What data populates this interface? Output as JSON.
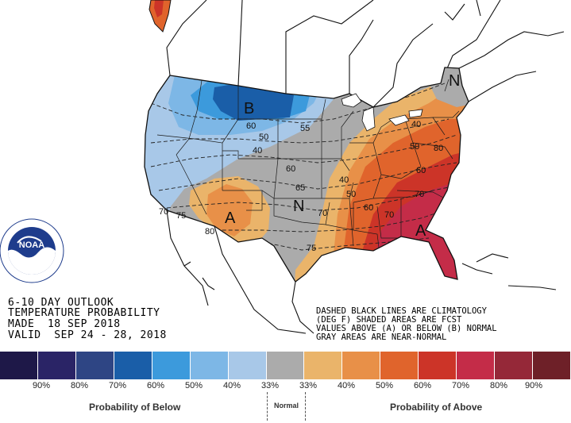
{
  "map": {
    "center_letters": {
      "below": "B",
      "above": "A",
      "normal": "N"
    },
    "contour_labels": [
      "60",
      "50",
      "40",
      "55",
      "60",
      "65",
      "70",
      "75",
      "80",
      "70",
      "75",
      "40",
      "50",
      "60",
      "70",
      "40",
      "50",
      "60",
      "70",
      "80"
    ]
  },
  "title_block": {
    "line1": "6-10 DAY OUTLOOK",
    "line2": "TEMPERATURE PROBABILITY",
    "line3": "MADE  18 SEP 2018",
    "line4": "VALID  SEP 24 - 28, 2018"
  },
  "notes": {
    "line1": "DASHED BLACK LINES ARE CLIMATOLOGY",
    "line2": "(DEG F) SHADED AREAS ARE FCST",
    "line3": "VALUES ABOVE (A) OR BELOW (B) NORMAL",
    "line4": "GRAY AREAS ARE NEAR-NORMAL"
  },
  "logo": {
    "text": "NOAA",
    "ring_text": "NATIONAL OCEANIC AND ATMOSPHERIC ADMINISTRATION · U.S. DEPARTMENT OF COMMERCE"
  },
  "legend": {
    "colors": [
      "#1e1848",
      "#2a2466",
      "#2e4584",
      "#1a5ea8",
      "#3c9adc",
      "#7db7e6",
      "#a8c8e8",
      "#ababab",
      "#eab46a",
      "#e89048",
      "#e0642c",
      "#cc3428",
      "#c42c48",
      "#952838",
      "#6e2028"
    ],
    "labels": [
      "90%",
      "80%",
      "70%",
      "60%",
      "50%",
      "40%",
      "33%",
      "33%",
      "40%",
      "50%",
      "60%",
      "70%",
      "80%",
      "90%"
    ],
    "below_caption": "Probability of Below",
    "normal_caption": "Normal",
    "above_caption": "Probability of Above"
  }
}
